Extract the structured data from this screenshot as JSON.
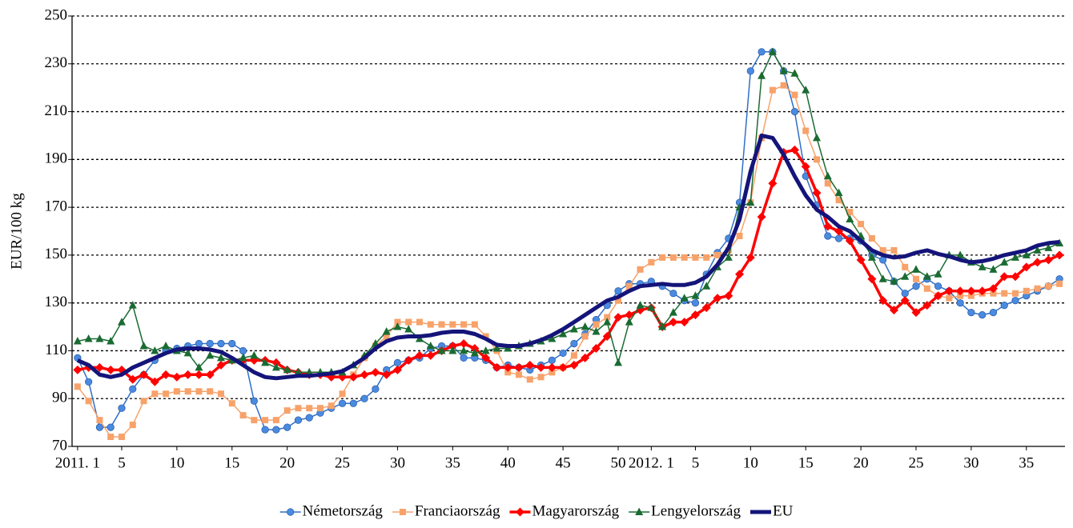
{
  "chart_data": {
    "type": "line",
    "y_label": "EUR/100 kg",
    "categories": [
      "2011. 1",
      null,
      null,
      null,
      "5",
      null,
      null,
      null,
      null,
      "10",
      null,
      null,
      null,
      null,
      "15",
      null,
      null,
      null,
      null,
      "20",
      null,
      null,
      null,
      null,
      "25",
      null,
      null,
      null,
      null,
      "30",
      null,
      null,
      null,
      null,
      "35",
      null,
      null,
      null,
      null,
      "40",
      null,
      null,
      null,
      null,
      "45",
      null,
      null,
      null,
      null,
      "50",
      null,
      null,
      "2012. 1",
      null,
      null,
      null,
      "5",
      null,
      null,
      null,
      null,
      "10",
      null,
      null,
      null,
      null,
      "15",
      null,
      null,
      null,
      null,
      "20",
      null,
      null,
      null,
      null,
      "25",
      null,
      null,
      null,
      null,
      "30",
      null,
      null,
      null,
      null,
      "35",
      null,
      null,
      null
    ],
    "ylim": [
      70,
      250
    ],
    "yticks": [
      70,
      90,
      110,
      130,
      150,
      170,
      190,
      210,
      230,
      250
    ],
    "grid": true,
    "legend": "bottom",
    "series": [
      {
        "name": "Németország",
        "color": "#2f6fc8",
        "marker": "circle",
        "values": [
          107,
          97,
          78,
          78,
          86,
          94,
          100,
          106,
          110,
          111,
          112,
          113,
          113,
          113,
          113,
          110,
          89,
          77,
          77,
          78,
          81,
          82,
          84,
          86,
          88,
          88,
          90,
          94,
          102,
          105,
          106,
          107,
          111,
          112,
          112,
          107,
          107,
          106,
          103,
          104,
          103,
          102,
          104,
          106,
          109,
          113,
          117,
          123,
          129,
          135,
          138,
          138,
          139,
          137,
          134,
          131,
          130,
          142,
          151,
          157,
          172,
          227,
          235,
          235,
          227,
          210,
          183,
          171,
          158,
          157,
          157,
          156,
          150,
          148,
          139,
          134,
          137,
          140,
          137,
          135,
          130,
          126,
          125,
          126,
          129,
          131,
          133,
          135,
          137,
          140
        ]
      },
      {
        "name": "Franciaország",
        "color": "#f7a26a",
        "marker": "square",
        "values": [
          95,
          89,
          81,
          74,
          74,
          79,
          89,
          92,
          92,
          93,
          93,
          93,
          93,
          92,
          88,
          83,
          81,
          81,
          81,
          85,
          86,
          86,
          86,
          87,
          92,
          100,
          107,
          112,
          116,
          122,
          122,
          122,
          121,
          121,
          121,
          121,
          121,
          116,
          110,
          101,
          100,
          98,
          99,
          101,
          103,
          108,
          116,
          121,
          124,
          131,
          137,
          144,
          147,
          149,
          149,
          149,
          149,
          149,
          150,
          152,
          158,
          172,
          199,
          219,
          221,
          217,
          202,
          190,
          180,
          173,
          168,
          163,
          157,
          152,
          152,
          145,
          140,
          136,
          133,
          132,
          133,
          133,
          134,
          134,
          134,
          134,
          135,
          136,
          137,
          138
        ]
      },
      {
        "name": "Magyarország",
        "color": "#ff0000",
        "marker": "diamond",
        "values": [
          102,
          103,
          103,
          102,
          102,
          98,
          100,
          97,
          100,
          99,
          100,
          100,
          100,
          104,
          106,
          106,
          106,
          106,
          105,
          102,
          101,
          100,
          100,
          99,
          99,
          99,
          100,
          101,
          100,
          102,
          106,
          108,
          108,
          110,
          112,
          113,
          111,
          107,
          103,
          103,
          103,
          104,
          103,
          103,
          103,
          104,
          107,
          111,
          116,
          124,
          125,
          127,
          128,
          120,
          122,
          122,
          125,
          128,
          132,
          133,
          142,
          149,
          166,
          180,
          193,
          194,
          187,
          176,
          162,
          160,
          156,
          148,
          140,
          131,
          127,
          131,
          126,
          129,
          133,
          135,
          135,
          135,
          135,
          136,
          141,
          141,
          145,
          147,
          148,
          150
        ]
      },
      {
        "name": "Lengyelország",
        "color": "#1a6b32",
        "marker": "triangle",
        "values": [
          114,
          115,
          115,
          114,
          122,
          129,
          112,
          110,
          112,
          110,
          109,
          103,
          108,
          107,
          106,
          107,
          108,
          105,
          103,
          102,
          101,
          101,
          101,
          101,
          101,
          104,
          108,
          113,
          118,
          120,
          119,
          115,
          112,
          110,
          110,
          110,
          109,
          110,
          111,
          111,
          112,
          113,
          114,
          115,
          117,
          119,
          120,
          118,
          122,
          105,
          122,
          129,
          128,
          120,
          126,
          132,
          133,
          137,
          145,
          149,
          170,
          172,
          225,
          235,
          227,
          226,
          219,
          199,
          183,
          176,
          165,
          158,
          149,
          140,
          139,
          141,
          144,
          141,
          142,
          150,
          150,
          147,
          145,
          144,
          147,
          149,
          150,
          152,
          153,
          155
        ]
      },
      {
        "name": "EU",
        "color": "#14147a",
        "marker": "none",
        "values": [
          106,
          104,
          100,
          99,
          100,
          103,
          105,
          107,
          109,
          110.5,
          111,
          111,
          110.5,
          109.5,
          107,
          104,
          101,
          99,
          98.5,
          99,
          99.5,
          99.5,
          100,
          100.5,
          101.5,
          104,
          107,
          111,
          114,
          115.5,
          116,
          116,
          116.5,
          117.5,
          118,
          118,
          117,
          115,
          112.5,
          112,
          112,
          113,
          114.5,
          116.5,
          119,
          122,
          125,
          128,
          131,
          132.5,
          135,
          137,
          137.5,
          138,
          137.5,
          137.5,
          138.5,
          141,
          146,
          153,
          165,
          185,
          200,
          199,
          192,
          183,
          175,
          169,
          166,
          162,
          160,
          156,
          152,
          150,
          149,
          149.5,
          151,
          152,
          150.5,
          149.5,
          148,
          147,
          147.5,
          148.5,
          150,
          151,
          152,
          154,
          155,
          155.5
        ]
      }
    ]
  }
}
